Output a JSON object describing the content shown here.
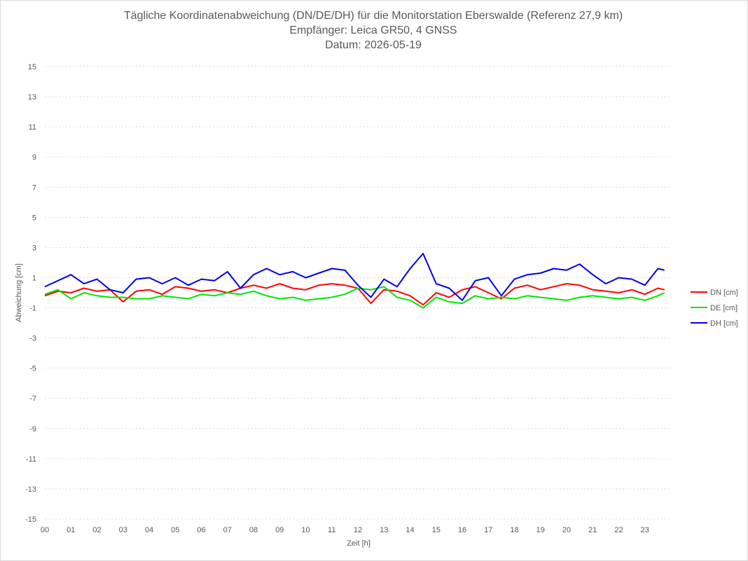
{
  "chart_data": {
    "type": "line",
    "title": [
      "Tägliche Koordinatenabweichung (DN/DE/DH) für die Monitorstation Eberswalde (Referenz 27,9 km)",
      "Empfänger: Leica GR50, 4 GNSS",
      "Datum: 2026-05-19"
    ],
    "xlabel": "Zeit [h]",
    "ylabel": "Abweichung [cm]",
    "xlim": [
      0,
      24
    ],
    "ylim": [
      -15,
      15
    ],
    "x_ticks": [
      "00",
      "01",
      "02",
      "03",
      "04",
      "05",
      "06",
      "07",
      "08",
      "09",
      "10",
      "11",
      "12",
      "13",
      "14",
      "15",
      "16",
      "17",
      "18",
      "19",
      "20",
      "21",
      "22",
      "23"
    ],
    "y_ticks": [
      15,
      13,
      11,
      9,
      7,
      5,
      3,
      1,
      -1,
      -3,
      -5,
      -7,
      -9,
      -11,
      -13,
      -15
    ],
    "grid": true,
    "legend_position": "right",
    "x": [
      0.0,
      0.5,
      1.0,
      1.5,
      2.0,
      2.5,
      3.0,
      3.5,
      4.0,
      4.5,
      5.0,
      5.5,
      6.0,
      6.5,
      7.0,
      7.5,
      8.0,
      8.5,
      9.0,
      9.5,
      10.0,
      10.5,
      11.0,
      11.5,
      12.0,
      12.5,
      13.0,
      13.5,
      14.0,
      14.5,
      15.0,
      15.5,
      16.0,
      16.5,
      17.0,
      17.5,
      18.0,
      18.5,
      19.0,
      19.5,
      20.0,
      20.5,
      21.0,
      21.5,
      22.0,
      22.5,
      23.0,
      23.5,
      23.75
    ],
    "series": [
      {
        "name": "DN [cm]",
        "color": "#ff0000",
        "values": [
          -0.2,
          0.1,
          0.0,
          0.3,
          0.1,
          0.2,
          -0.6,
          0.1,
          0.2,
          -0.1,
          0.4,
          0.3,
          0.1,
          0.2,
          0.0,
          0.3,
          0.5,
          0.3,
          0.6,
          0.3,
          0.2,
          0.5,
          0.6,
          0.5,
          0.3,
          -0.7,
          0.2,
          0.1,
          -0.2,
          -0.8,
          0.0,
          -0.3,
          0.2,
          0.4,
          0.0,
          -0.4,
          0.3,
          0.5,
          0.2,
          0.4,
          0.6,
          0.5,
          0.2,
          0.1,
          0.0,
          0.2,
          -0.1,
          0.3,
          0.2
        ]
      },
      {
        "name": "DE [cm]",
        "color": "#00e600",
        "values": [
          -0.1,
          0.2,
          -0.4,
          0.0,
          -0.2,
          -0.3,
          -0.3,
          -0.4,
          -0.4,
          -0.2,
          -0.3,
          -0.4,
          -0.1,
          -0.2,
          0.0,
          -0.1,
          0.1,
          -0.2,
          -0.4,
          -0.3,
          -0.5,
          -0.4,
          -0.3,
          -0.1,
          0.3,
          0.2,
          0.4,
          -0.3,
          -0.5,
          -1.0,
          -0.3,
          -0.6,
          -0.7,
          -0.2,
          -0.4,
          -0.3,
          -0.4,
          -0.2,
          -0.3,
          -0.4,
          -0.5,
          -0.3,
          -0.2,
          -0.3,
          -0.4,
          -0.3,
          -0.5,
          -0.2,
          0.0
        ]
      },
      {
        "name": "DH [cm]",
        "color": "#0000e6",
        "values": [
          0.4,
          0.8,
          1.2,
          0.6,
          0.9,
          0.2,
          0.0,
          0.9,
          1.0,
          0.6,
          1.0,
          0.5,
          0.9,
          0.8,
          1.4,
          0.3,
          1.2,
          1.6,
          1.2,
          1.4,
          1.0,
          1.3,
          1.6,
          1.5,
          0.5,
          -0.3,
          0.9,
          0.4,
          1.6,
          2.6,
          0.6,
          0.3,
          -0.5,
          0.8,
          1.0,
          -0.2,
          0.9,
          1.2,
          1.3,
          1.6,
          1.5,
          1.9,
          1.2,
          0.6,
          1.0,
          0.9,
          0.5,
          1.6,
          1.5
        ]
      }
    ]
  }
}
